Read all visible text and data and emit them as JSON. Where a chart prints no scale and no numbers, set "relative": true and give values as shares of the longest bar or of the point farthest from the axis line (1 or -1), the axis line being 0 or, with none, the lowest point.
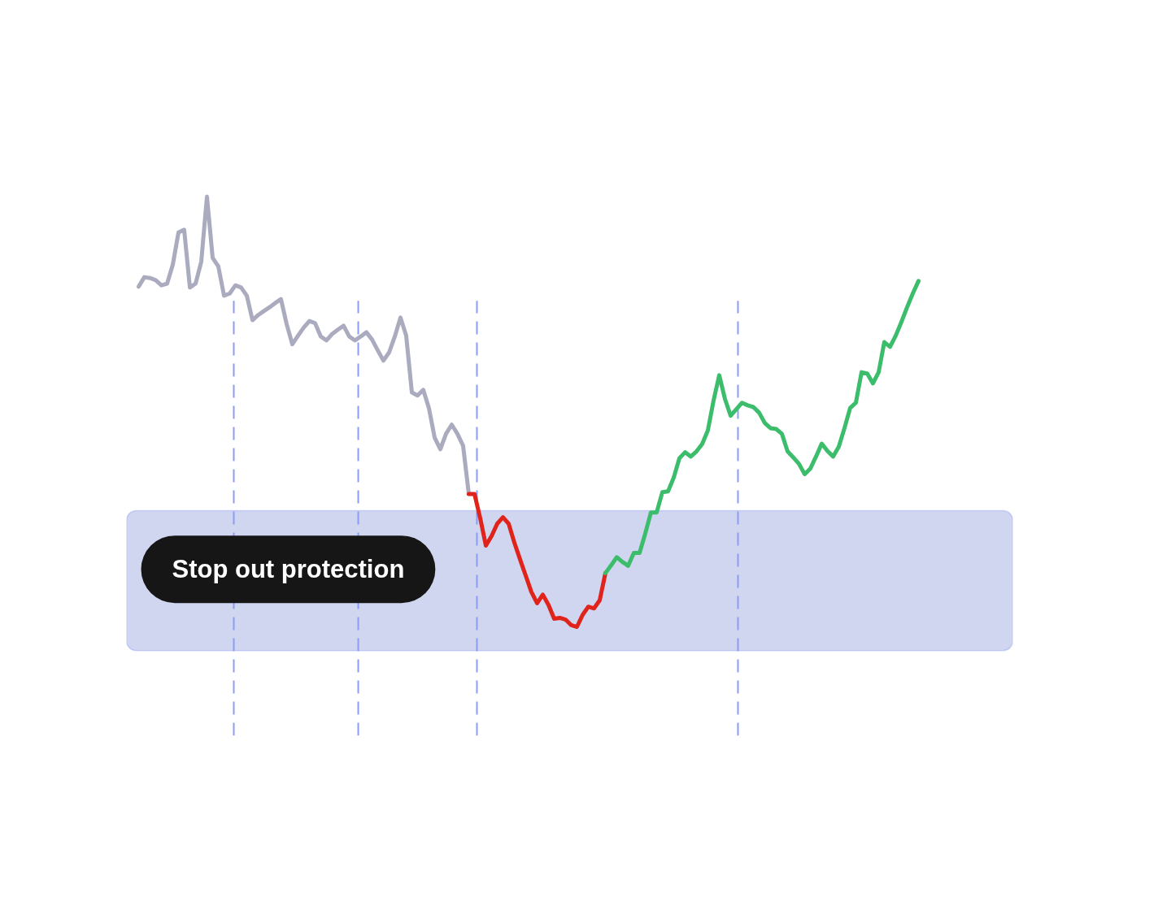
{
  "chart_data": {
    "type": "line",
    "relative": true,
    "tick_labels": false,
    "categories": [
      null,
      null,
      null,
      null,
      null,
      null,
      null,
      null,
      null,
      null,
      null,
      null,
      null,
      null,
      null,
      null,
      null,
      null,
      null,
      null,
      null,
      null,
      null,
      null,
      null,
      null,
      null,
      null,
      null,
      null,
      null,
      null,
      null,
      null,
      null,
      null,
      null,
      null,
      null,
      null,
      null,
      null,
      null,
      null,
      null,
      null,
      null,
      null,
      null,
      null,
      null,
      null,
      null,
      null,
      null,
      null,
      null,
      null,
      null,
      null,
      null,
      null,
      null,
      null,
      null,
      null,
      null,
      null,
      null,
      null,
      null,
      null,
      null,
      null,
      null,
      null,
      null,
      null,
      null,
      null,
      null,
      null,
      null,
      null,
      null,
      null,
      null,
      null,
      null,
      null,
      null,
      null,
      null,
      null,
      null,
      null,
      null,
      null,
      null,
      null,
      null,
      null,
      null,
      null,
      null,
      null,
      null,
      null,
      null,
      null,
      null,
      null,
      null,
      null,
      null,
      null,
      null,
      null,
      null,
      null,
      null,
      null,
      null,
      null,
      null,
      null,
      null,
      null,
      null,
      null,
      null,
      null,
      null,
      null,
      null,
      null,
      null,
      null
    ],
    "series": [
      {
        "color": "#aaabbf",
        "values": [
          0.791,
          0.813,
          0.811,
          0.806,
          0.794,
          0.798,
          0.842,
          0.917,
          0.923,
          0.789,
          0.798,
          0.849,
          1.0,
          0.858,
          0.838,
          0.77,
          0.775,
          0.794,
          0.789,
          0.77,
          0.713,
          0.725,
          0.734,
          0.743,
          0.753,
          0.762,
          0.704,
          0.657,
          0.677,
          0.696,
          0.711,
          0.706,
          0.675,
          0.666,
          0.681,
          0.691,
          0.7,
          0.675,
          0.666,
          0.675,
          0.685,
          0.668,
          0.643,
          0.619,
          0.638,
          0.675,
          0.719,
          0.677,
          0.545,
          0.538,
          0.551,
          0.508,
          0.44,
          0.413,
          0.449,
          0.47,
          0.449,
          0.421,
          0.309,
          null,
          null,
          null,
          null,
          null,
          null,
          null,
          null,
          null,
          null,
          null,
          null,
          null,
          null,
          null,
          null,
          null,
          null,
          null,
          null,
          null,
          null,
          null,
          null,
          null,
          null,
          null,
          null,
          null,
          null,
          null,
          null,
          null,
          null,
          null,
          null,
          null,
          null,
          null,
          null,
          null,
          null,
          null,
          null,
          null,
          null,
          null,
          null,
          null,
          null,
          null,
          null,
          null,
          null,
          null,
          null,
          null,
          null,
          null,
          null,
          null,
          null,
          null,
          null,
          null,
          null,
          null,
          null,
          null,
          null,
          null,
          null,
          null,
          null,
          null,
          null,
          null,
          null,
          null
        ]
      },
      {
        "color": "#e0231b",
        "values": [
          null,
          null,
          null,
          null,
          null,
          null,
          null,
          null,
          null,
          null,
          null,
          null,
          null,
          null,
          null,
          null,
          null,
          null,
          null,
          null,
          null,
          null,
          null,
          null,
          null,
          null,
          null,
          null,
          null,
          null,
          null,
          null,
          null,
          null,
          null,
          null,
          null,
          null,
          null,
          null,
          null,
          null,
          null,
          null,
          null,
          null,
          null,
          null,
          null,
          null,
          null,
          null,
          null,
          null,
          null,
          null,
          null,
          null,
          0.309,
          0.309,
          0.253,
          0.189,
          0.211,
          0.24,
          0.255,
          0.24,
          0.196,
          0.157,
          0.119,
          0.081,
          0.055,
          0.075,
          0.051,
          0.019,
          0.021,
          0.017,
          0.004,
          0,
          0.028,
          0.047,
          0.043,
          0.062,
          0.125,
          null,
          null,
          null,
          null,
          null,
          null,
          null,
          null,
          null,
          null,
          null,
          null,
          null,
          null,
          null,
          null,
          null,
          null,
          null,
          null,
          null,
          null,
          null,
          null,
          null,
          null,
          null,
          null,
          null,
          null,
          null,
          null,
          null,
          null,
          null,
          null,
          null,
          null,
          null,
          null,
          null,
          null,
          null,
          null,
          null,
          null,
          null,
          null,
          null,
          null,
          null,
          null,
          null,
          null,
          null
        ]
      },
      {
        "color": "#3cbd6c",
        "values": [
          null,
          null,
          null,
          null,
          null,
          null,
          null,
          null,
          null,
          null,
          null,
          null,
          null,
          null,
          null,
          null,
          null,
          null,
          null,
          null,
          null,
          null,
          null,
          null,
          null,
          null,
          null,
          null,
          null,
          null,
          null,
          null,
          null,
          null,
          null,
          null,
          null,
          null,
          null,
          null,
          null,
          null,
          null,
          null,
          null,
          null,
          null,
          null,
          null,
          null,
          null,
          null,
          null,
          null,
          null,
          null,
          null,
          null,
          null,
          null,
          null,
          null,
          null,
          null,
          null,
          null,
          null,
          null,
          null,
          null,
          null,
          null,
          null,
          null,
          null,
          null,
          null,
          null,
          null,
          null,
          null,
          null,
          0.125,
          0.143,
          0.162,
          0.151,
          0.142,
          0.172,
          0.172,
          0.217,
          0.266,
          0.266,
          0.313,
          0.315,
          0.347,
          0.392,
          0.406,
          0.396,
          0.408,
          0.425,
          0.457,
          0.526,
          0.585,
          0.53,
          0.491,
          0.506,
          0.521,
          0.515,
          0.511,
          0.498,
          0.474,
          0.462,
          0.46,
          0.449,
          0.408,
          0.394,
          0.379,
          0.355,
          0.368,
          0.396,
          0.426,
          0.409,
          0.396,
          0.419,
          0.462,
          0.509,
          0.521,
          0.592,
          0.589,
          0.566,
          0.592,
          0.662,
          0.651,
          0.677,
          0.709,
          0.743,
          0.775,
          0.804
        ]
      }
    ],
    "bands": [
      {
        "axis": "y",
        "from": -0.055,
        "to": 0.27,
        "label": "Stop out protection",
        "color": "#d0d5f0"
      }
    ]
  }
}
